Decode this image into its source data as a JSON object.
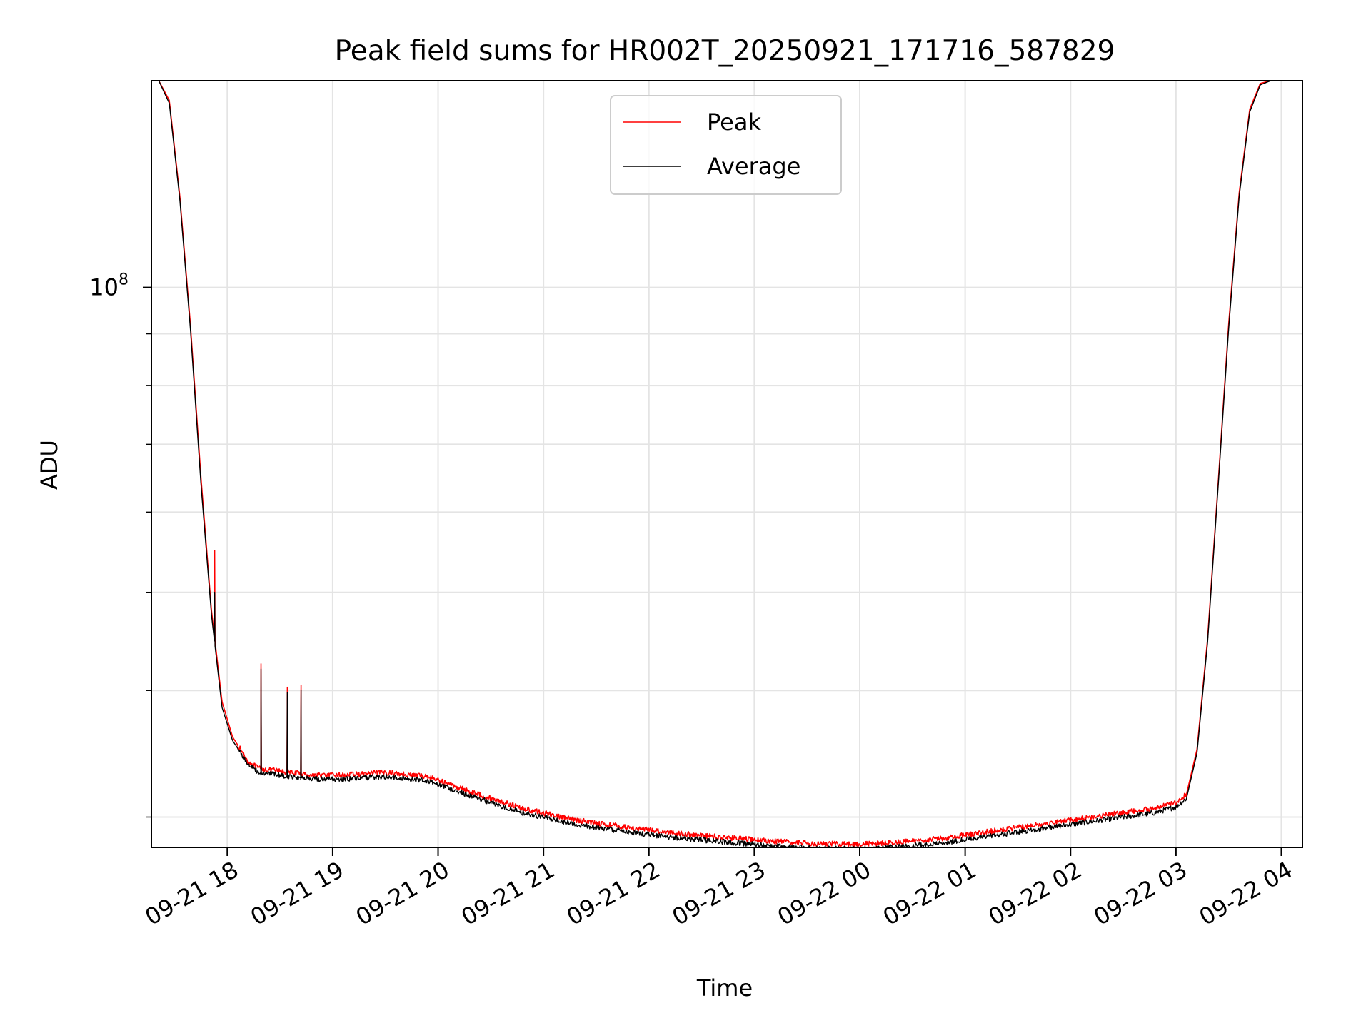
{
  "chart_data": {
    "type": "line",
    "title": "Peak field sums for HR002T_20250921_171716_587829",
    "xlabel": "Time",
    "ylabel": "ADU",
    "yscale": "log",
    "ylim": [
      28000000,
      160000000
    ],
    "xlim_hours": [
      17.28,
      28.2
    ],
    "y_tick_major": {
      "value": 100000000,
      "label": "10",
      "exponent": "8"
    },
    "y_tick_minor": [
      30000000,
      40000000,
      50000000,
      60000000,
      70000000,
      80000000,
      90000000,
      200000000
    ],
    "x_ticks": [
      {
        "hour": 18,
        "label": "09-21 18"
      },
      {
        "hour": 19,
        "label": "09-21 19"
      },
      {
        "hour": 20,
        "label": "09-21 20"
      },
      {
        "hour": 21,
        "label": "09-21 21"
      },
      {
        "hour": 22,
        "label": "09-21 22"
      },
      {
        "hour": 23,
        "label": "09-21 23"
      },
      {
        "hour": 24,
        "label": "09-22 00"
      },
      {
        "hour": 25,
        "label": "09-22 01"
      },
      {
        "hour": 26,
        "label": "09-22 02"
      },
      {
        "hour": 27,
        "label": "09-22 03"
      },
      {
        "hour": 28,
        "label": "09-22 04"
      }
    ],
    "grid": true,
    "legend": "top-center",
    "series": [
      {
        "name": "Peak",
        "color": "#ff0000",
        "x_hours": [
          17.28,
          17.35,
          17.45,
          17.55,
          17.65,
          17.75,
          17.85,
          17.95,
          18.05,
          18.2,
          18.3,
          18.5,
          18.8,
          19.1,
          19.5,
          19.9,
          20.3,
          20.8,
          21.3,
          21.8,
          22.3,
          22.8,
          23.3,
          23.6,
          24.0,
          24.4,
          24.8,
          25.2,
          25.6,
          26.0,
          26.4,
          26.8,
          27.0,
          27.1,
          27.2,
          27.3,
          27.4,
          27.5,
          27.6,
          27.7,
          27.8,
          27.9,
          28.0
        ],
        "values": [
          160000000,
          160000000,
          153000000,
          123000000,
          92000000,
          65000000,
          48000000,
          39000000,
          36000000,
          34000000,
          33500000,
          33300000,
          33000000,
          33000000,
          33200000,
          32900000,
          31800000,
          30600000,
          29800000,
          29300000,
          28900000,
          28600000,
          28350000,
          28250000,
          28200000,
          28350000,
          28600000,
          29000000,
          29400000,
          29800000,
          30200000,
          30600000,
          31000000,
          31600000,
          35000000,
          45000000,
          64000000,
          92000000,
          124000000,
          150000000,
          159000000,
          160000000,
          160000000
        ],
        "spikes": [
          {
            "hour": 17.88,
            "value": 55000000
          },
          {
            "hour": 18.32,
            "value": 42500000
          },
          {
            "hour": 18.57,
            "value": 40300000
          },
          {
            "hour": 18.7,
            "value": 40500000
          }
        ]
      },
      {
        "name": "Average",
        "color": "#000000",
        "x_hours": [
          17.28,
          17.35,
          17.45,
          17.55,
          17.65,
          17.75,
          17.85,
          17.95,
          18.05,
          18.2,
          18.3,
          18.5,
          18.8,
          19.1,
          19.5,
          19.9,
          20.3,
          20.8,
          21.3,
          21.8,
          22.3,
          22.8,
          23.3,
          23.6,
          24.0,
          24.4,
          24.8,
          25.2,
          25.6,
          26.0,
          26.4,
          26.8,
          27.0,
          27.1,
          27.2,
          27.3,
          27.4,
          27.5,
          27.6,
          27.7,
          27.8,
          27.9,
          28.0
        ],
        "values": [
          160000000,
          160000000,
          152000000,
          122000000,
          91000000,
          64000000,
          47500000,
          38500000,
          35700000,
          33800000,
          33200000,
          33000000,
          32700000,
          32700000,
          32900000,
          32600000,
          31500000,
          30300000,
          29500000,
          29000000,
          28600000,
          28300000,
          28050000,
          27950000,
          27900000,
          28050000,
          28300000,
          28700000,
          29100000,
          29500000,
          29900000,
          30300000,
          30700000,
          31300000,
          34700000,
          44600000,
          63500000,
          91000000,
          123000000,
          149000000,
          158500000,
          160000000,
          160000000
        ],
        "spikes": [
          {
            "hour": 17.88,
            "value": 50000000
          },
          {
            "hour": 18.32,
            "value": 42000000
          },
          {
            "hour": 18.57,
            "value": 39800000
          },
          {
            "hour": 18.7,
            "value": 40000000
          }
        ]
      }
    ]
  }
}
